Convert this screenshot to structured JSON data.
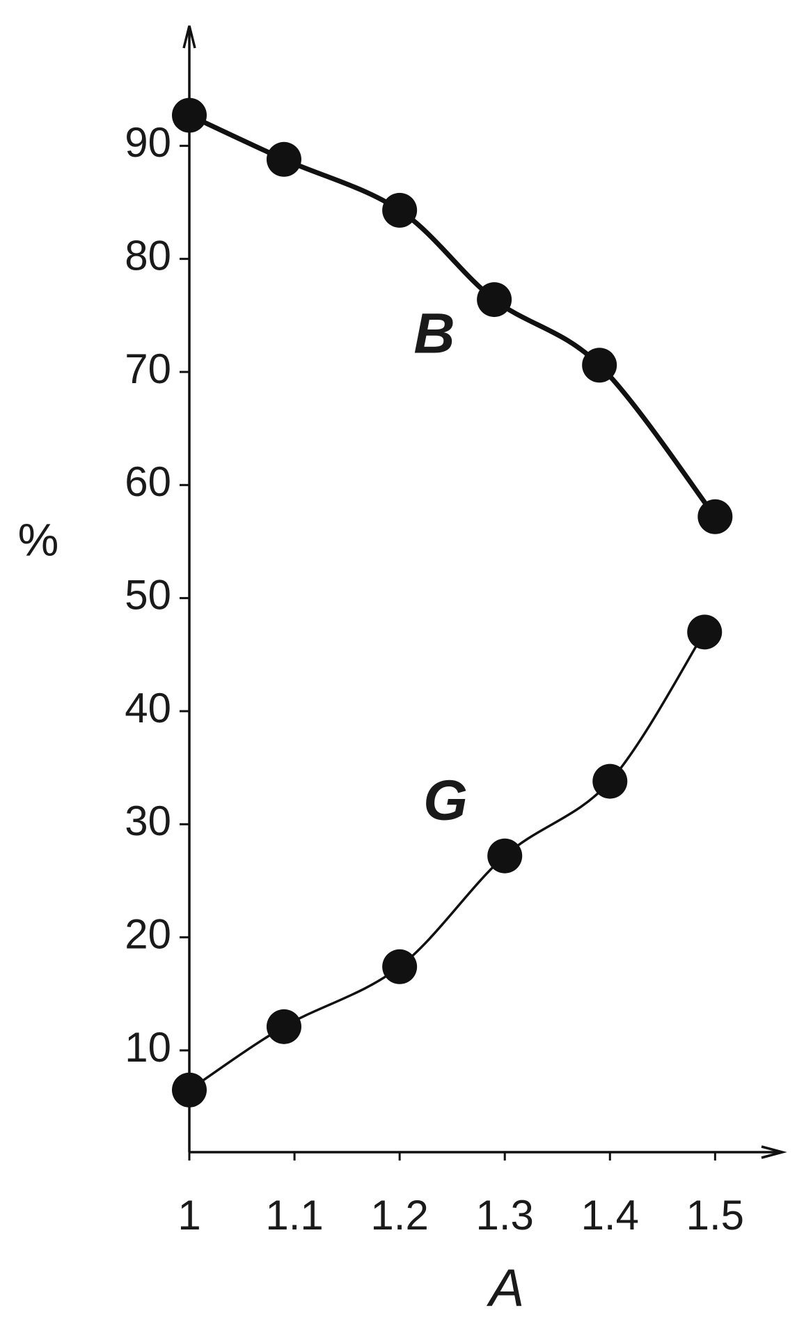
{
  "chart_data": {
    "type": "line",
    "x_label": "A",
    "y_label": "%",
    "xlim": [
      1,
      1.56
    ],
    "ylim": [
      1,
      100
    ],
    "xticks": [
      1,
      1.1,
      1.2,
      1.3,
      1.4,
      1.5
    ],
    "yticks": [
      10,
      20,
      30,
      40,
      50,
      60,
      70,
      80,
      90
    ],
    "grid": false,
    "series": [
      {
        "name": "B",
        "color": "#111111",
        "x": [
          1,
          1.09,
          1.2,
          1.29,
          1.39,
          1.5
        ],
        "values": [
          92.7,
          88.8,
          84.3,
          76.4,
          70.6,
          57.2
        ]
      },
      {
        "name": "G",
        "color": "#111111",
        "x": [
          1,
          1.09,
          1.2,
          1.3,
          1.4,
          1.49
        ],
        "values": [
          6.5,
          12.1,
          17.4,
          27.2,
          33.8,
          47.0
        ]
      }
    ]
  }
}
